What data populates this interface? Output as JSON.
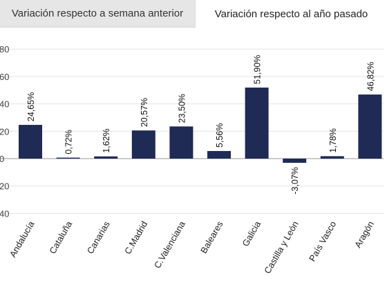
{
  "tabs": [
    {
      "label": "Variación respecto a semana anterior",
      "active": false
    },
    {
      "label": "Variación respecto al año pasado",
      "active": true
    }
  ],
  "colors": {
    "bar": "#1f2a55",
    "grid": "#e3e3e3",
    "zero_line": "#9a9a9a"
  },
  "chart_data": {
    "type": "bar",
    "categories": [
      "Andalucía",
      "Cataluña",
      "Canarias",
      "C.Madrid",
      "C.Valenciana",
      "Baleares",
      "Galicia",
      "Castilla y León",
      "País Vasco",
      "Aragón"
    ],
    "values": [
      24.65,
      0.72,
      1.62,
      20.57,
      23.5,
      5.56,
      51.9,
      -3.07,
      1.78,
      46.82
    ],
    "data_labels": [
      "24,65%",
      "0,72%",
      "1,62%",
      "20,57%",
      "23,50%",
      "5,56%",
      "51,90%",
      "-3,07%",
      "1,78%",
      "46,82%"
    ],
    "yticks": [
      -40,
      -20,
      0,
      20,
      40,
      60,
      80
    ],
    "ytick_labels": [
      "40",
      "20",
      "0",
      "20",
      "40",
      "60",
      "80"
    ],
    "ylim": [
      -50,
      90
    ],
    "grid": true,
    "legend": "none",
    "title": "",
    "xlabel": "",
    "ylabel": ""
  }
}
